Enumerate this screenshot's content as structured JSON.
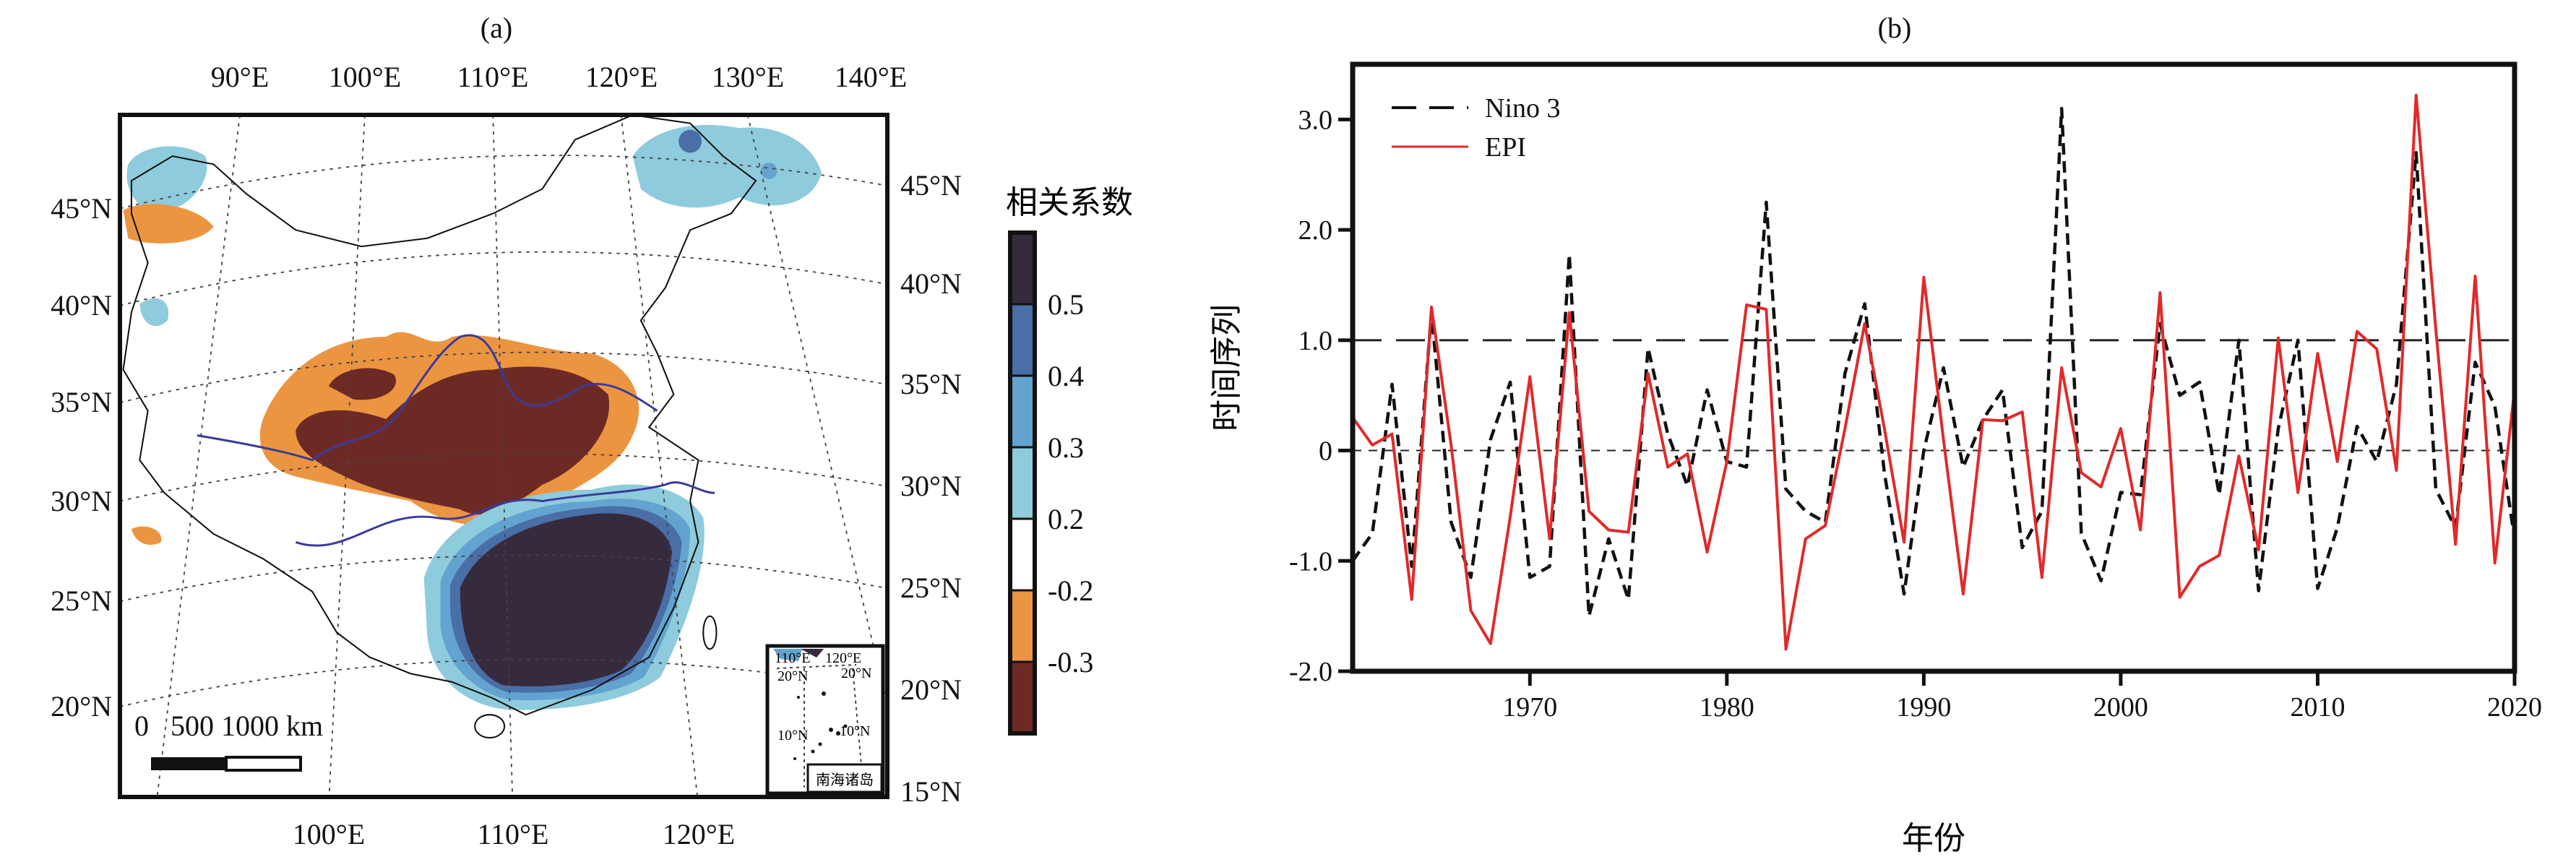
{
  "panel_a": {
    "label": "(a)",
    "top_lon_labels": [
      "90°E",
      "100°E",
      "110°E",
      "120°E",
      "130°E",
      "140°E"
    ],
    "bottom_lon_labels": [
      "100°E",
      "110°E",
      "120°E"
    ],
    "left_lat_labels": [
      "45°N",
      "40°N",
      "35°N",
      "30°N",
      "25°N",
      "20°N"
    ],
    "right_lat_labels": [
      "45°N",
      "40°N",
      "35°N",
      "30°N",
      "25°N",
      "20°N",
      "15°N"
    ],
    "scale_bar": {
      "labels": "0   500 1000 km"
    },
    "inset": {
      "lon_labels": [
        "110°E",
        "120°E"
      ],
      "lat_labels": [
        "20°N",
        "20°N",
        "10°N",
        "10°N"
      ],
      "title": "南海诸岛"
    },
    "colorbar": {
      "title": "相关系数",
      "tick_labels": [
        "0.5",
        "0.4",
        "0.3",
        "0.2",
        "-0.2",
        "-0.3"
      ],
      "colors": [
        "#362a3d",
        "#4a6ea6",
        "#62a4cf",
        "#8ecbdc",
        "#ffffff",
        "#ec9541",
        "#6d2a25"
      ]
    }
  },
  "chart_data": {
    "type": "line",
    "title": "(b)",
    "xlabel": "年份",
    "ylabel": "时间序列",
    "xlim": [
      1961,
      2020
    ],
    "ylim": [
      -2.0,
      3.5
    ],
    "xticks": [
      1970,
      1980,
      1990,
      2000,
      2010,
      2020
    ],
    "xticklabels": [
      "1970",
      "1980",
      "1990",
      "2000",
      "2010",
      "2020"
    ],
    "yticks": [
      3,
      2,
      1,
      0,
      -1,
      -2
    ],
    "yticklabels": [
      "3.0",
      "2.0",
      "1.0",
      "0",
      "-1.0",
      "-2.0"
    ],
    "reference_lines": [
      1.0,
      0
    ],
    "legend_position": "top-left",
    "x": [
      1961,
      1962,
      1963,
      1964,
      1965,
      1966,
      1967,
      1968,
      1969,
      1970,
      1971,
      1972,
      1973,
      1974,
      1975,
      1976,
      1977,
      1978,
      1979,
      1980,
      1981,
      1982,
      1983,
      1984,
      1985,
      1986,
      1987,
      1988,
      1989,
      1990,
      1991,
      1992,
      1993,
      1994,
      1995,
      1996,
      1997,
      1998,
      1999,
      2000,
      2001,
      2002,
      2003,
      2004,
      2005,
      2006,
      2007,
      2008,
      2009,
      2010,
      2011,
      2012,
      2013,
      2014,
      2015,
      2016,
      2017,
      2018,
      2019,
      2020
    ],
    "series": [
      {
        "name": "Nino 3",
        "color": "#111111",
        "style": "dashed",
        "values": [
          -1.0,
          -0.75,
          0.6,
          -1.05,
          1.25,
          -0.65,
          -1.15,
          0.1,
          0.62,
          -1.15,
          -1.05,
          1.78,
          -1.5,
          -0.8,
          -1.35,
          0.93,
          0.15,
          -0.32,
          0.55,
          -0.1,
          -0.15,
          2.25,
          -0.35,
          -0.55,
          -0.65,
          0.7,
          1.33,
          -0.2,
          -1.3,
          0.0,
          0.75,
          -0.15,
          0.28,
          0.55,
          -0.88,
          -0.55,
          3.1,
          -0.75,
          -1.18,
          -0.38,
          -0.4,
          1.15,
          0.5,
          0.62,
          -0.4,
          1.0,
          -1.27,
          0.2,
          1.0,
          -1.25,
          -0.7,
          0.22,
          -0.1,
          0.6,
          2.7,
          -0.35,
          -0.7,
          0.8,
          0.4,
          -0.8
        ]
      },
      {
        "name": "EPI",
        "color": "#e02a2a",
        "style": "solid",
        "values": [
          0.3,
          0.05,
          0.15,
          -1.35,
          1.3,
          0.05,
          -1.45,
          -1.75,
          -0.6,
          0.67,
          -0.8,
          1.25,
          -0.55,
          -0.72,
          -0.74,
          0.7,
          -0.15,
          -0.03,
          -0.92,
          -0.1,
          1.32,
          1.28,
          -1.8,
          -0.8,
          -0.68,
          0.2,
          1.15,
          0.2,
          -0.83,
          1.57,
          0.1,
          -1.3,
          0.28,
          0.27,
          0.35,
          -1.15,
          0.75,
          -0.2,
          -0.33,
          0.2,
          -0.72,
          1.43,
          -1.33,
          -1.05,
          -0.95,
          -0.05,
          -0.9,
          1.02,
          -0.38,
          0.88,
          -0.1,
          1.08,
          0.92,
          -0.18,
          3.22,
          1.1,
          -0.85,
          1.58,
          -1.02,
          0.55
        ]
      }
    ]
  }
}
